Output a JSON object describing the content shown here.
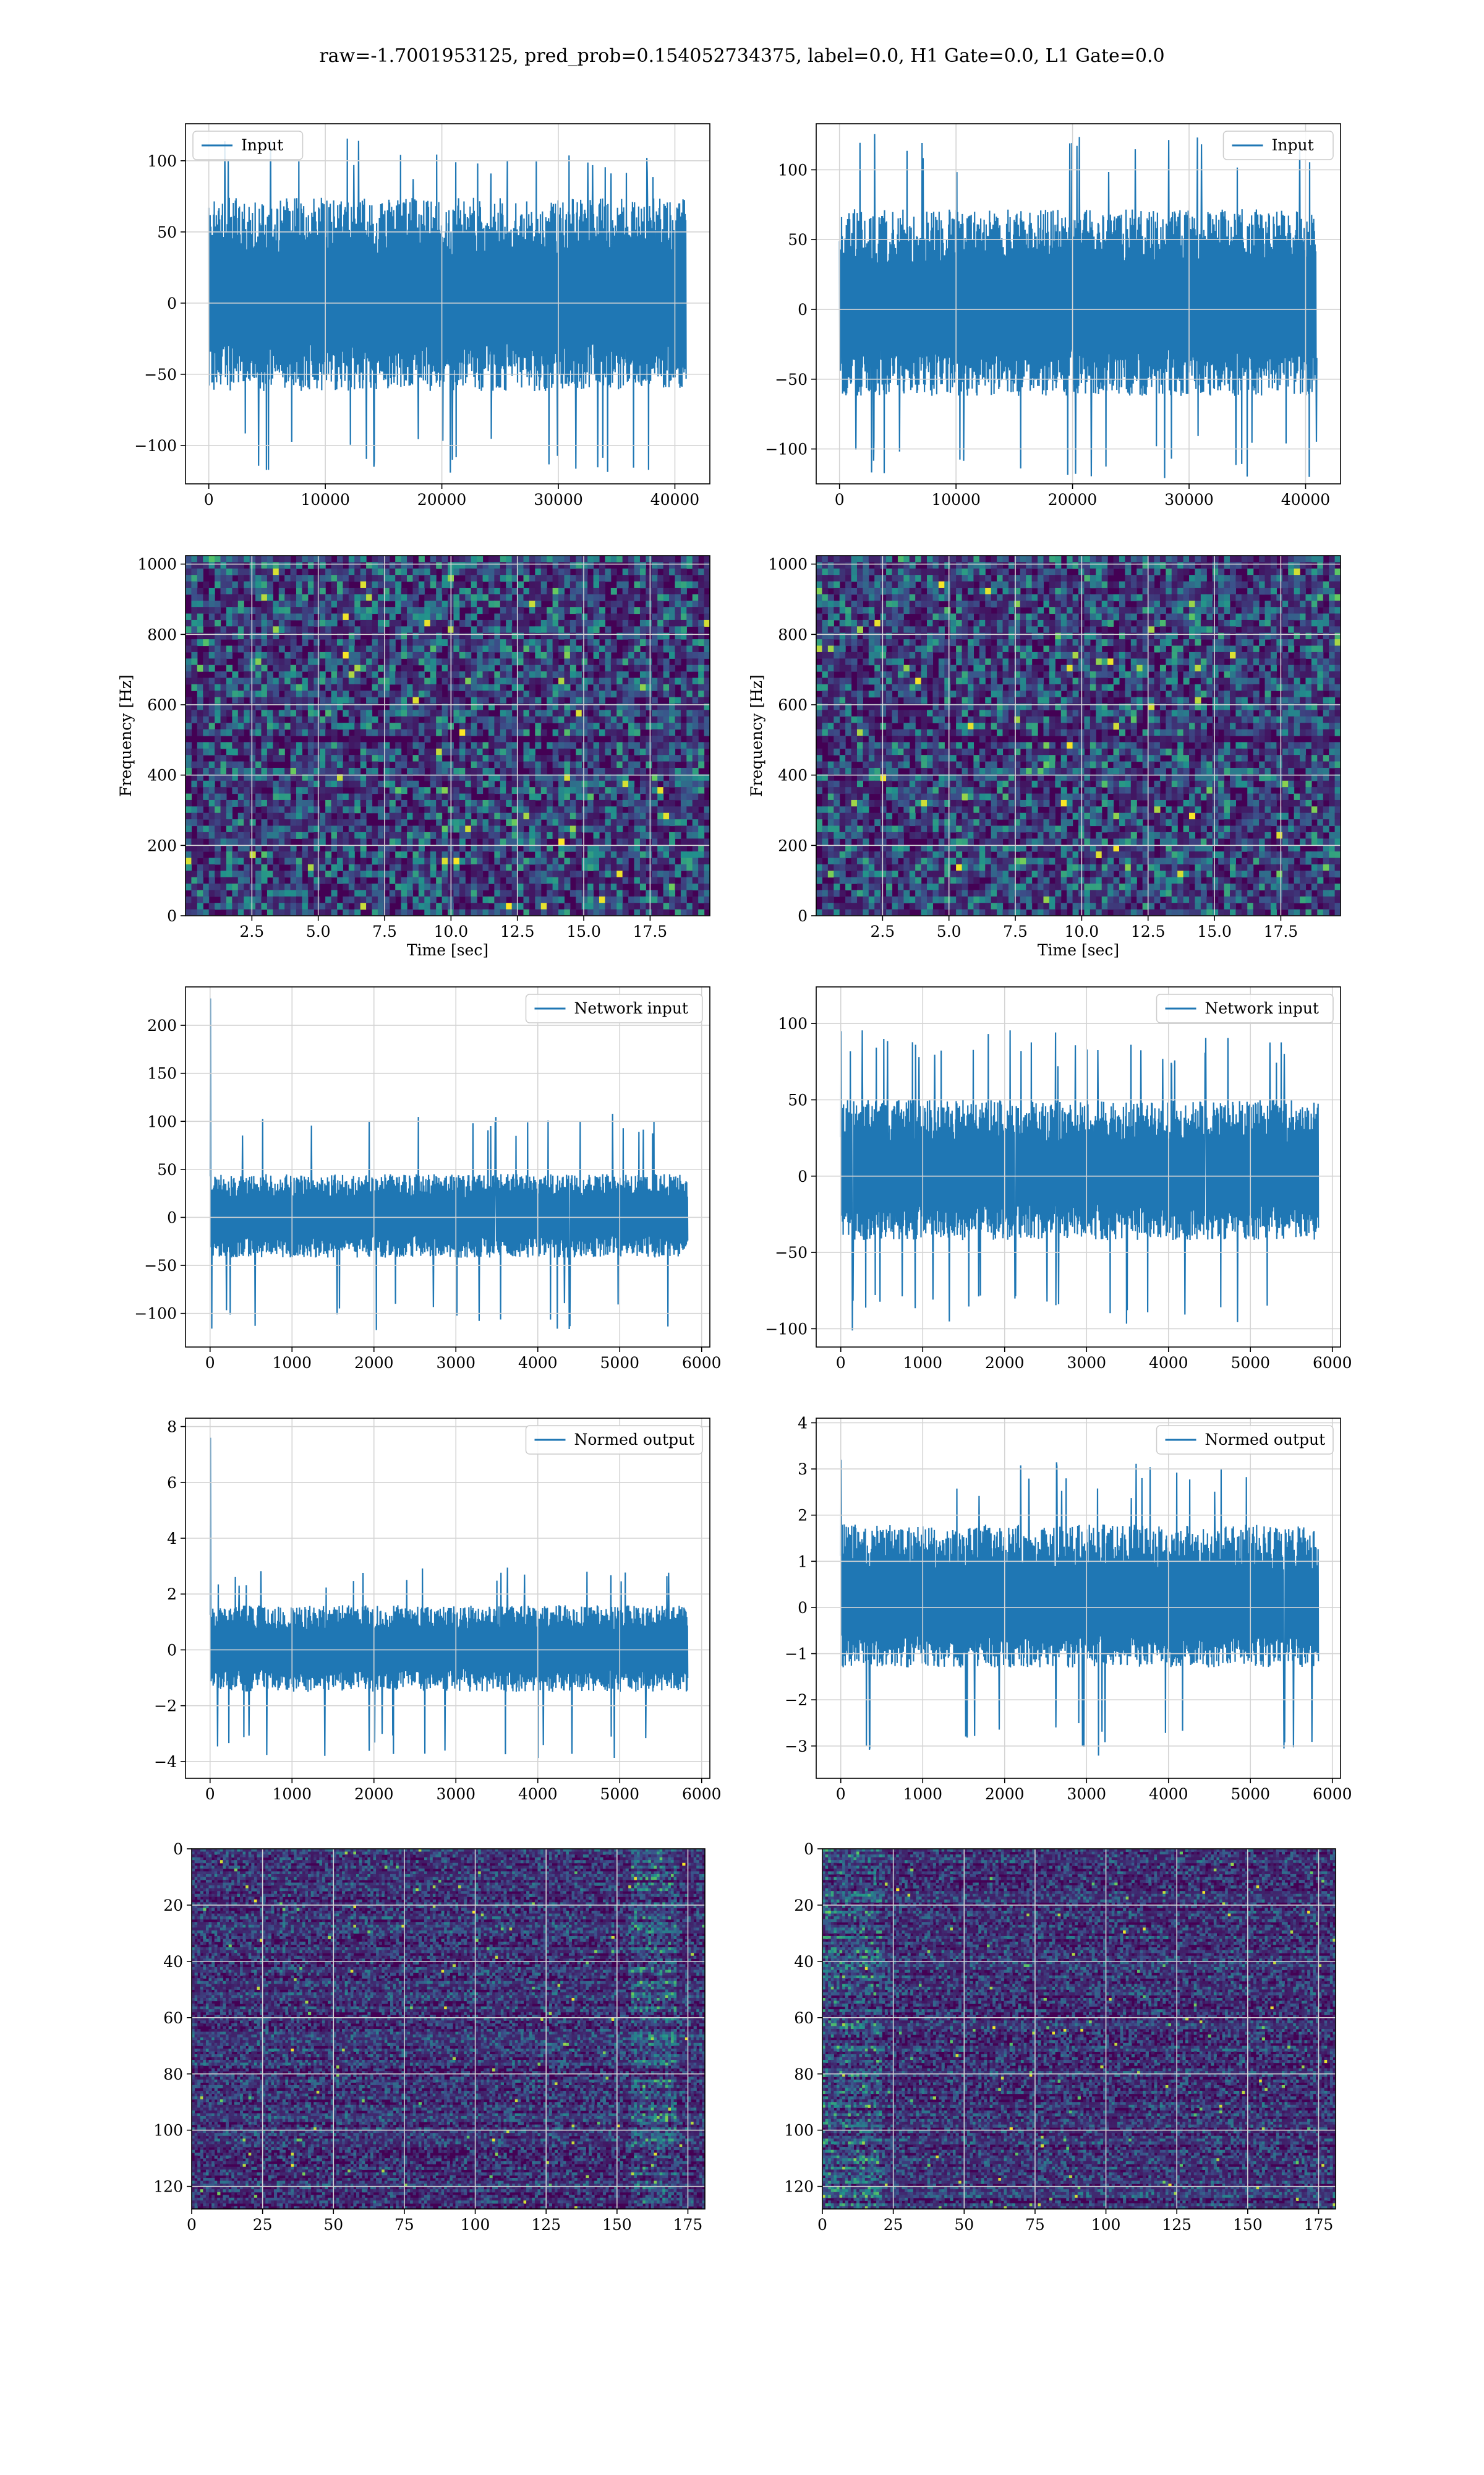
{
  "figure": {
    "suptitle": "raw=-1.7001953125, pred_prob=0.154052734375, label=0.0, H1 Gate=0.0, L1 Gate=0.0"
  },
  "colors": {
    "line": "#1f77b4",
    "grid": "#d4d4d4",
    "viridis": [
      "#440154",
      "#3b528b",
      "#21918c",
      "#5ec962",
      "#fde725"
    ]
  },
  "chart_data": [
    {
      "id": "input-h1",
      "type": "line",
      "legend": "Input",
      "legend_loc": "upper left",
      "xlabel": "",
      "ylabel": "",
      "xlim": [
        -2000,
        43000
      ],
      "ylim": [
        -127,
        126
      ],
      "xticks": [
        0,
        10000,
        20000,
        30000,
        40000
      ],
      "xtick_labels": [
        "0",
        "10000",
        "20000",
        "30000",
        "40000"
      ],
      "yticks": [
        -100,
        -50,
        0,
        50,
        100
      ],
      "ytick_labels": [
        "−100",
        "−50",
        "0",
        "50",
        "100"
      ],
      "signal": {
        "n": 40960,
        "band": [
          -62,
          74
        ],
        "peak_max": 116,
        "peak_min": -121,
        "start_spike": null
      }
    },
    {
      "id": "input-l1",
      "type": "line",
      "legend": "Input",
      "legend_loc": "upper right",
      "xlabel": "",
      "ylabel": "",
      "xlim": [
        -2000,
        43000
      ],
      "ylim": [
        -125,
        133
      ],
      "xticks": [
        0,
        10000,
        20000,
        30000,
        40000
      ],
      "xtick_labels": [
        "0",
        "10000",
        "20000",
        "30000",
        "40000"
      ],
      "yticks": [
        -100,
        -50,
        0,
        50,
        100
      ],
      "ytick_labels": [
        "−100",
        "−50",
        "0",
        "50",
        "100"
      ],
      "signal": {
        "n": 40960,
        "band": [
          -62,
          72
        ],
        "peak_max": 126,
        "peak_min": -121,
        "start_spike": null
      }
    },
    {
      "id": "spectrogram-h1",
      "type": "heatmap",
      "xlabel": "Time [sec]",
      "ylabel": "Frequency [Hz]",
      "xlim": [
        0,
        19.75
      ],
      "ylim": [
        0,
        1024
      ],
      "xticks": [
        2.5,
        5.0,
        7.5,
        10.0,
        12.5,
        15.0,
        17.5
      ],
      "xtick_labels": [
        "2.5",
        "5.0",
        "7.5",
        "10.0",
        "12.5",
        "15.0",
        "17.5"
      ],
      "yticks": [
        0,
        200,
        400,
        600,
        800,
        1000
      ],
      "ytick_labels": [
        "0",
        "200",
        "400",
        "600",
        "800",
        "1000"
      ],
      "grid": true,
      "colormap": "viridis",
      "dark_band": [
        490,
        520
      ]
    },
    {
      "id": "spectrogram-l1",
      "type": "heatmap",
      "xlabel": "Time [sec]",
      "ylabel": "Frequency [Hz]",
      "xlim": [
        0,
        19.75
      ],
      "ylim": [
        0,
        1024
      ],
      "xticks": [
        2.5,
        5.0,
        7.5,
        10.0,
        12.5,
        15.0,
        17.5
      ],
      "xtick_labels": [
        "2.5",
        "5.0",
        "7.5",
        "10.0",
        "12.5",
        "15.0",
        "17.5"
      ],
      "yticks": [
        0,
        200,
        400,
        600,
        800,
        1000
      ],
      "ytick_labels": [
        "0",
        "200",
        "400",
        "600",
        "800",
        "1000"
      ],
      "grid": true,
      "colormap": "viridis",
      "dark_band": [
        490,
        520
      ]
    },
    {
      "id": "network-input-h1",
      "type": "line",
      "legend": "Network input",
      "legend_loc": "upper right",
      "xlabel": "",
      "ylabel": "",
      "xlim": [
        -300,
        6100
      ],
      "ylim": [
        -135,
        240
      ],
      "xticks": [
        0,
        1000,
        2000,
        3000,
        4000,
        5000,
        6000
      ],
      "xtick_labels": [
        "0",
        "1000",
        "2000",
        "3000",
        "4000",
        "5000",
        "6000"
      ],
      "yticks": [
        -100,
        -50,
        0,
        50,
        100,
        150,
        200
      ],
      "ytick_labels": [
        "−100",
        "−50",
        "0",
        "50",
        "100",
        "150",
        "200"
      ],
      "signal": {
        "n": 5830,
        "band": [
          -42,
          45
        ],
        "peak_max": 112,
        "peak_min": -118,
        "start_spike": 228
      }
    },
    {
      "id": "network-input-l1",
      "type": "line",
      "legend": "Network input",
      "legend_loc": "upper right",
      "xlabel": "",
      "ylabel": "",
      "xlim": [
        -300,
        6100
      ],
      "ylim": [
        -112,
        124
      ],
      "xticks": [
        0,
        1000,
        2000,
        3000,
        4000,
        5000,
        6000
      ],
      "xtick_labels": [
        "0",
        "1000",
        "2000",
        "3000",
        "4000",
        "5000",
        "6000"
      ],
      "yticks": [
        -100,
        -50,
        0,
        50,
        100
      ],
      "ytick_labels": [
        "−100",
        "−50",
        "0",
        "50",
        "100"
      ],
      "signal": {
        "n": 5830,
        "band": [
          -42,
          50
        ],
        "peak_max": 96,
        "peak_min": -103,
        "start_spike": 95
      }
    },
    {
      "id": "normed-output-h1",
      "type": "line",
      "legend": "Normed output",
      "legend_loc": "upper right",
      "xlabel": "",
      "ylabel": "",
      "xlim": [
        -300,
        6100
      ],
      "ylim": [
        -4.6,
        8.3
      ],
      "xticks": [
        0,
        1000,
        2000,
        3000,
        4000,
        5000,
        6000
      ],
      "xtick_labels": [
        "0",
        "1000",
        "2000",
        "3000",
        "4000",
        "5000",
        "6000"
      ],
      "yticks": [
        -4,
        -2,
        0,
        2,
        4,
        6,
        8
      ],
      "ytick_labels": [
        "−4",
        "−2",
        "0",
        "2",
        "4",
        "6",
        "8"
      ],
      "signal": {
        "n": 5830,
        "band": [
          -1.5,
          1.6
        ],
        "peak_max": 2.95,
        "peak_min": -3.9,
        "start_spike": 7.6
      }
    },
    {
      "id": "normed-output-l1",
      "type": "line",
      "legend": "Normed output",
      "legend_loc": "upper right",
      "xlabel": "",
      "ylabel": "",
      "xlim": [
        -300,
        6100
      ],
      "ylim": [
        -3.7,
        4.1
      ],
      "xticks": [
        0,
        1000,
        2000,
        3000,
        4000,
        5000,
        6000
      ],
      "xtick_labels": [
        "0",
        "1000",
        "2000",
        "3000",
        "4000",
        "5000",
        "6000"
      ],
      "yticks": [
        -3,
        -2,
        -1,
        0,
        1,
        2,
        3,
        4
      ],
      "ytick_labels": [
        "−3",
        "−2",
        "−1",
        "0",
        "1",
        "2",
        "3",
        "4"
      ],
      "signal": {
        "n": 5830,
        "band": [
          -1.3,
          1.8
        ],
        "peak_max": 3.15,
        "peak_min": -3.3,
        "start_spike": 3.2
      }
    },
    {
      "id": "feature-map-h1",
      "type": "heatmap",
      "xlabel": "",
      "ylabel": "",
      "xlim": [
        0,
        181
      ],
      "ylim": [
        128,
        0
      ],
      "xticks": [
        0,
        25,
        50,
        75,
        100,
        125,
        150,
        175
      ],
      "xtick_labels": [
        "0",
        "25",
        "50",
        "75",
        "100",
        "125",
        "150",
        "175"
      ],
      "yticks": [
        0,
        20,
        40,
        60,
        80,
        100,
        120
      ],
      "ytick_labels": [
        "0",
        "20",
        "40",
        "60",
        "80",
        "100",
        "120"
      ],
      "grid": true,
      "colormap": "viridis",
      "hot_columns": [
        155,
        170
      ]
    },
    {
      "id": "feature-map-l1",
      "type": "heatmap",
      "xlabel": "",
      "ylabel": "",
      "xlim": [
        0,
        181
      ],
      "ylim": [
        128,
        0
      ],
      "xticks": [
        0,
        25,
        50,
        75,
        100,
        125,
        150,
        175
      ],
      "xtick_labels": [
        "0",
        "25",
        "50",
        "75",
        "100",
        "125",
        "150",
        "175"
      ],
      "yticks": [
        0,
        20,
        40,
        60,
        80,
        100,
        120
      ],
      "ytick_labels": [
        "0",
        "20",
        "40",
        "60",
        "80",
        "100",
        "120"
      ],
      "grid": true,
      "colormap": "viridis",
      "hot_columns": [
        0,
        20
      ]
    }
  ]
}
